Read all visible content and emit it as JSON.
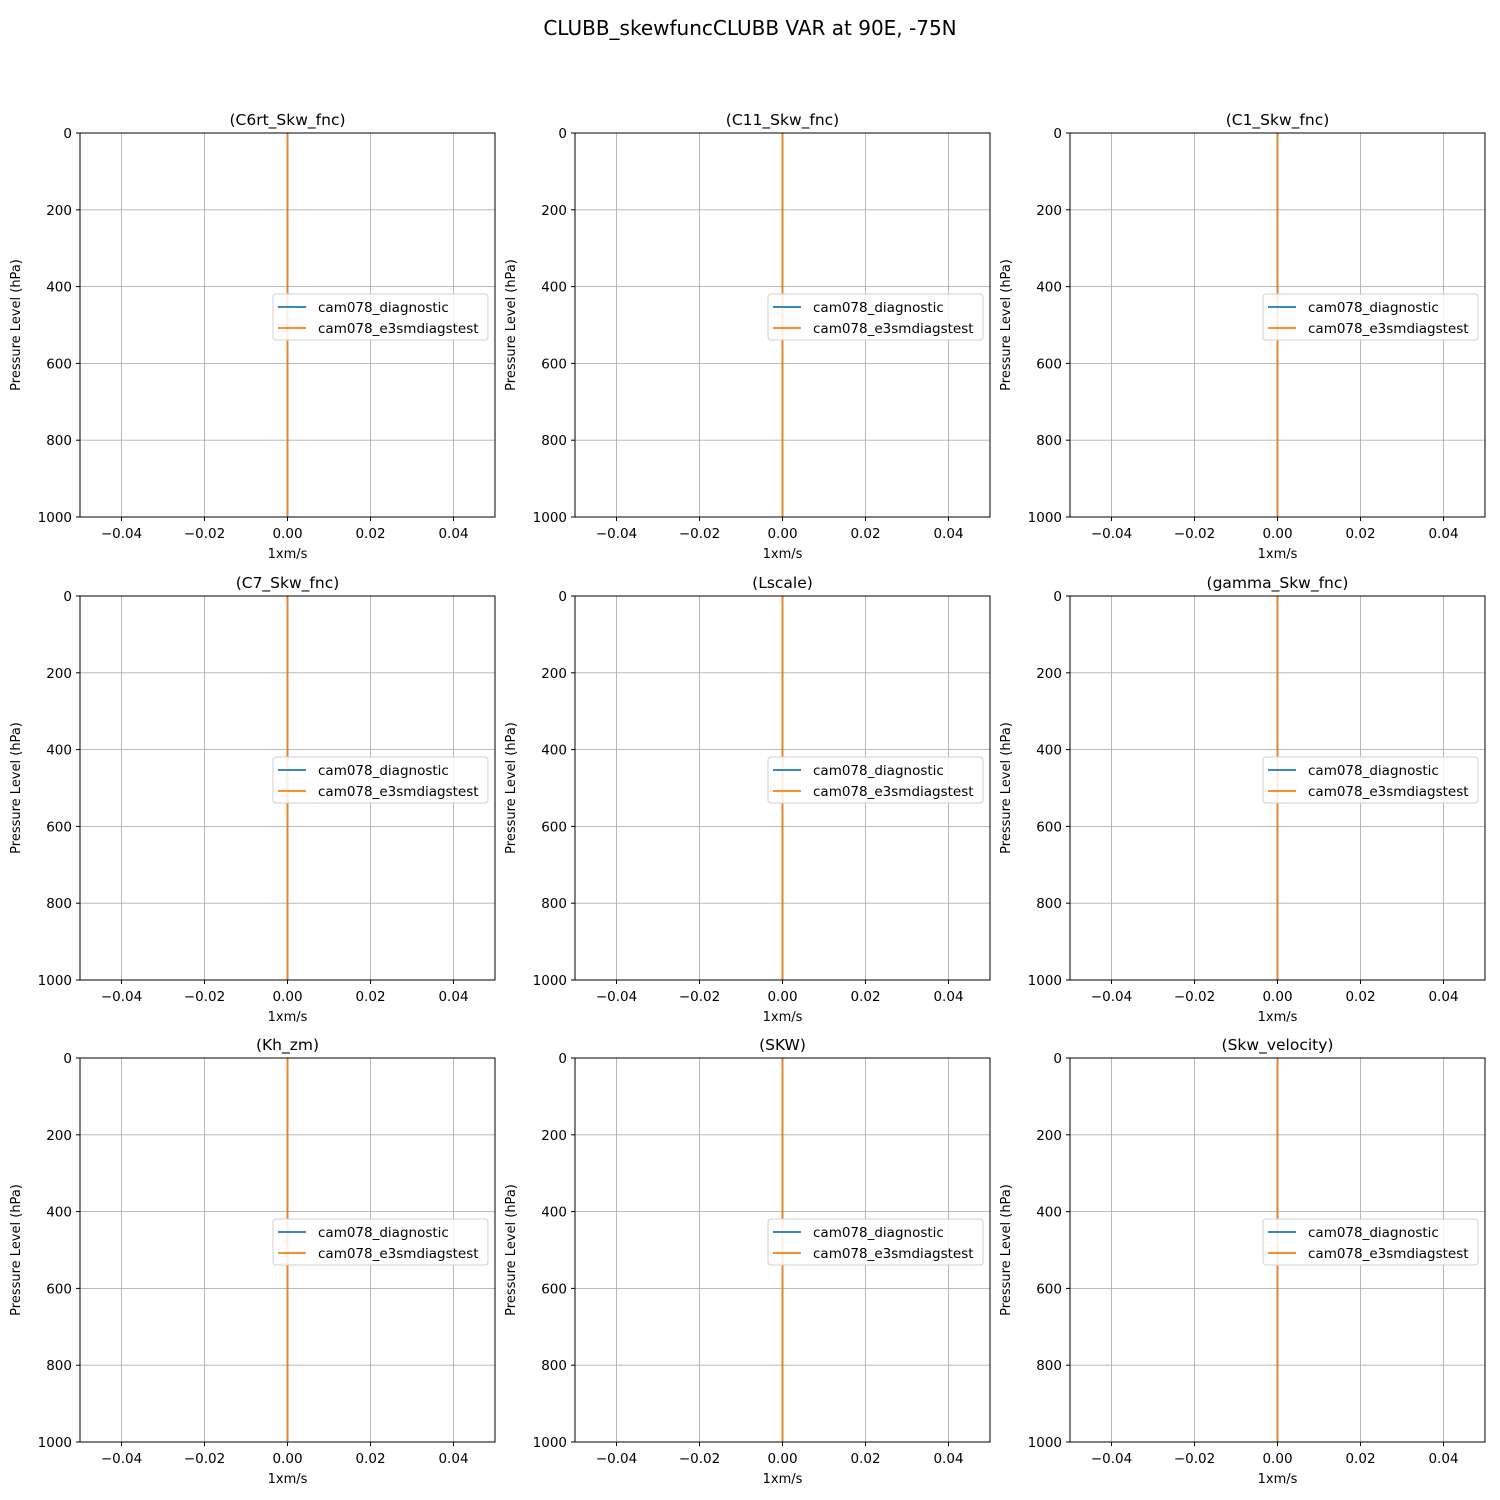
{
  "figure": {
    "title": "CLUBB_skewfuncCLUBB VAR at 90E, -75N"
  },
  "chart_data": [
    {
      "type": "line",
      "title": "(C6rt_Skw_fnc)",
      "xlabel": "1xm/s",
      "ylabel": "Pressure Level (hPa)",
      "xlim": [
        -0.05,
        0.05
      ],
      "ylim": [
        1000,
        0
      ],
      "y_inverted": true,
      "grid": true,
      "legend_position": "center-right",
      "xticks": [
        -0.04,
        -0.02,
        0.0,
        0.02,
        0.04
      ],
      "xtick_labels": [
        "−0.04",
        "−0.02",
        "0.00",
        "0.02",
        "0.04"
      ],
      "yticks": [
        0,
        200,
        400,
        600,
        800,
        1000
      ],
      "ytick_labels": [
        "0",
        "200",
        "400",
        "600",
        "800",
        "1000"
      ],
      "series": [
        {
          "name": "cam078_diagnostic",
          "color": "#1f77b4",
          "x": [
            0,
            0
          ],
          "y": [
            0,
            1000
          ]
        },
        {
          "name": "cam078_e3smdiagstest",
          "color": "#ff7f0e",
          "x": [
            0,
            0
          ],
          "y": [
            0,
            1000
          ]
        }
      ]
    },
    {
      "type": "line",
      "title": "(C11_Skw_fnc)",
      "xlabel": "1xm/s",
      "ylabel": "Pressure Level (hPa)",
      "xlim": [
        -0.05,
        0.05
      ],
      "ylim": [
        1000,
        0
      ],
      "y_inverted": true,
      "grid": true,
      "legend_position": "center-right",
      "xticks": [
        -0.04,
        -0.02,
        0.0,
        0.02,
        0.04
      ],
      "xtick_labels": [
        "−0.04",
        "−0.02",
        "0.00",
        "0.02",
        "0.04"
      ],
      "yticks": [
        0,
        200,
        400,
        600,
        800,
        1000
      ],
      "ytick_labels": [
        "0",
        "200",
        "400",
        "600",
        "800",
        "1000"
      ],
      "series": [
        {
          "name": "cam078_diagnostic",
          "color": "#1f77b4",
          "x": [
            0,
            0
          ],
          "y": [
            0,
            1000
          ]
        },
        {
          "name": "cam078_e3smdiagstest",
          "color": "#ff7f0e",
          "x": [
            0,
            0
          ],
          "y": [
            0,
            1000
          ]
        }
      ]
    },
    {
      "type": "line",
      "title": "(C1_Skw_fnc)",
      "xlabel": "1xm/s",
      "ylabel": "Pressure Level (hPa)",
      "xlim": [
        -0.05,
        0.05
      ],
      "ylim": [
        1000,
        0
      ],
      "y_inverted": true,
      "grid": true,
      "legend_position": "center-right",
      "xticks": [
        -0.04,
        -0.02,
        0.0,
        0.02,
        0.04
      ],
      "xtick_labels": [
        "−0.04",
        "−0.02",
        "0.00",
        "0.02",
        "0.04"
      ],
      "yticks": [
        0,
        200,
        400,
        600,
        800,
        1000
      ],
      "ytick_labels": [
        "0",
        "200",
        "400",
        "600",
        "800",
        "1000"
      ],
      "series": [
        {
          "name": "cam078_diagnostic",
          "color": "#1f77b4",
          "x": [
            0,
            0
          ],
          "y": [
            0,
            1000
          ]
        },
        {
          "name": "cam078_e3smdiagstest",
          "color": "#ff7f0e",
          "x": [
            0,
            0
          ],
          "y": [
            0,
            1000
          ]
        }
      ]
    },
    {
      "type": "line",
      "title": "(C7_Skw_fnc)",
      "xlabel": "1xm/s",
      "ylabel": "Pressure Level (hPa)",
      "xlim": [
        -0.05,
        0.05
      ],
      "ylim": [
        1000,
        0
      ],
      "y_inverted": true,
      "grid": true,
      "legend_position": "center-right",
      "xticks": [
        -0.04,
        -0.02,
        0.0,
        0.02,
        0.04
      ],
      "xtick_labels": [
        "−0.04",
        "−0.02",
        "0.00",
        "0.02",
        "0.04"
      ],
      "yticks": [
        0,
        200,
        400,
        600,
        800,
        1000
      ],
      "ytick_labels": [
        "0",
        "200",
        "400",
        "600",
        "800",
        "1000"
      ],
      "series": [
        {
          "name": "cam078_diagnostic",
          "color": "#1f77b4",
          "x": [
            0,
            0
          ],
          "y": [
            0,
            1000
          ]
        },
        {
          "name": "cam078_e3smdiagstest",
          "color": "#ff7f0e",
          "x": [
            0,
            0
          ],
          "y": [
            0,
            1000
          ]
        }
      ]
    },
    {
      "type": "line",
      "title": "(Lscale)",
      "xlabel": "1xm/s",
      "ylabel": "Pressure Level (hPa)",
      "xlim": [
        -0.05,
        0.05
      ],
      "ylim": [
        1000,
        0
      ],
      "y_inverted": true,
      "grid": true,
      "legend_position": "center-right",
      "xticks": [
        -0.04,
        -0.02,
        0.0,
        0.02,
        0.04
      ],
      "xtick_labels": [
        "−0.04",
        "−0.02",
        "0.00",
        "0.02",
        "0.04"
      ],
      "yticks": [
        0,
        200,
        400,
        600,
        800,
        1000
      ],
      "ytick_labels": [
        "0",
        "200",
        "400",
        "600",
        "800",
        "1000"
      ],
      "series": [
        {
          "name": "cam078_diagnostic",
          "color": "#1f77b4",
          "x": [
            0,
            0
          ],
          "y": [
            0,
            1000
          ]
        },
        {
          "name": "cam078_e3smdiagstest",
          "color": "#ff7f0e",
          "x": [
            0,
            0
          ],
          "y": [
            0,
            1000
          ]
        }
      ]
    },
    {
      "type": "line",
      "title": "(gamma_Skw_fnc)",
      "xlabel": "1xm/s",
      "ylabel": "Pressure Level (hPa)",
      "xlim": [
        -0.05,
        0.05
      ],
      "ylim": [
        1000,
        0
      ],
      "y_inverted": true,
      "grid": true,
      "legend_position": "center-right",
      "xticks": [
        -0.04,
        -0.02,
        0.0,
        0.02,
        0.04
      ],
      "xtick_labels": [
        "−0.04",
        "−0.02",
        "0.00",
        "0.02",
        "0.04"
      ],
      "yticks": [
        0,
        200,
        400,
        600,
        800,
        1000
      ],
      "ytick_labels": [
        "0",
        "200",
        "400",
        "600",
        "800",
        "1000"
      ],
      "series": [
        {
          "name": "cam078_diagnostic",
          "color": "#1f77b4",
          "x": [
            0,
            0
          ],
          "y": [
            0,
            1000
          ]
        },
        {
          "name": "cam078_e3smdiagstest",
          "color": "#ff7f0e",
          "x": [
            0,
            0
          ],
          "y": [
            0,
            1000
          ]
        }
      ]
    },
    {
      "type": "line",
      "title": "(Kh_zm)",
      "xlabel": "1xm/s",
      "ylabel": "Pressure Level (hPa)",
      "xlim": [
        -0.05,
        0.05
      ],
      "ylim": [
        1000,
        0
      ],
      "y_inverted": true,
      "grid": true,
      "legend_position": "center-right",
      "xticks": [
        -0.04,
        -0.02,
        0.0,
        0.02,
        0.04
      ],
      "xtick_labels": [
        "−0.04",
        "−0.02",
        "0.00",
        "0.02",
        "0.04"
      ],
      "yticks": [
        0,
        200,
        400,
        600,
        800,
        1000
      ],
      "ytick_labels": [
        "0",
        "200",
        "400",
        "600",
        "800",
        "1000"
      ],
      "series": [
        {
          "name": "cam078_diagnostic",
          "color": "#1f77b4",
          "x": [
            0,
            0
          ],
          "y": [
            0,
            1000
          ]
        },
        {
          "name": "cam078_e3smdiagstest",
          "color": "#ff7f0e",
          "x": [
            0,
            0
          ],
          "y": [
            0,
            1000
          ]
        }
      ]
    },
    {
      "type": "line",
      "title": "(SKW)",
      "xlabel": "1xm/s",
      "ylabel": "Pressure Level (hPa)",
      "xlim": [
        -0.05,
        0.05
      ],
      "ylim": [
        1000,
        0
      ],
      "y_inverted": true,
      "grid": true,
      "legend_position": "center-right",
      "xticks": [
        -0.04,
        -0.02,
        0.0,
        0.02,
        0.04
      ],
      "xtick_labels": [
        "−0.04",
        "−0.02",
        "0.00",
        "0.02",
        "0.04"
      ],
      "yticks": [
        0,
        200,
        400,
        600,
        800,
        1000
      ],
      "ytick_labels": [
        "0",
        "200",
        "400",
        "600",
        "800",
        "1000"
      ],
      "series": [
        {
          "name": "cam078_diagnostic",
          "color": "#1f77b4",
          "x": [
            0,
            0
          ],
          "y": [
            0,
            1000
          ]
        },
        {
          "name": "cam078_e3smdiagstest",
          "color": "#ff7f0e",
          "x": [
            0,
            0
          ],
          "y": [
            0,
            1000
          ]
        }
      ]
    },
    {
      "type": "line",
      "title": "(Skw_velocity)",
      "xlabel": "1xm/s",
      "ylabel": "Pressure Level (hPa)",
      "xlim": [
        -0.05,
        0.05
      ],
      "ylim": [
        1000,
        0
      ],
      "y_inverted": true,
      "grid": true,
      "legend_position": "center-right",
      "xticks": [
        -0.04,
        -0.02,
        0.0,
        0.02,
        0.04
      ],
      "xtick_labels": [
        "−0.04",
        "−0.02",
        "0.00",
        "0.02",
        "0.04"
      ],
      "yticks": [
        0,
        200,
        400,
        600,
        800,
        1000
      ],
      "ytick_labels": [
        "0",
        "200",
        "400",
        "600",
        "800",
        "1000"
      ],
      "series": [
        {
          "name": "cam078_diagnostic",
          "color": "#1f77b4",
          "x": [
            0,
            0
          ],
          "y": [
            0,
            1000
          ]
        },
        {
          "name": "cam078_e3smdiagstest",
          "color": "#ff7f0e",
          "x": [
            0,
            0
          ],
          "y": [
            0,
            1000
          ]
        }
      ]
    }
  ]
}
